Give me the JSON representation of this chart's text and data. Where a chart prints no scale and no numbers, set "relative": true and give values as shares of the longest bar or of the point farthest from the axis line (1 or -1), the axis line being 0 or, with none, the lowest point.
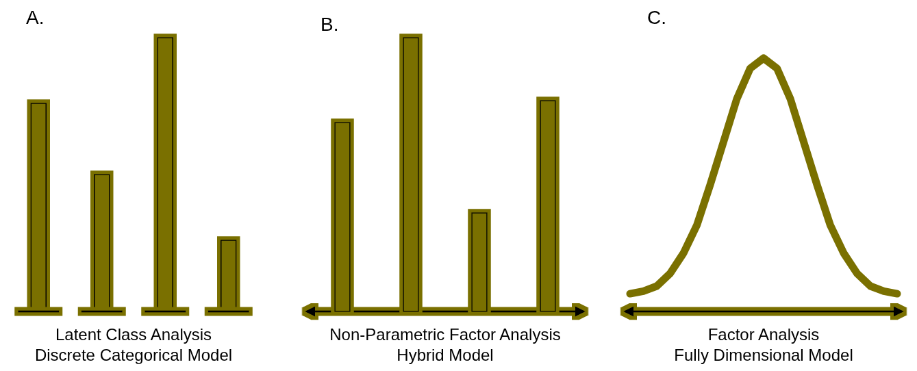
{
  "chart_data": [
    {
      "type": "bar",
      "title": "A.",
      "xlabel": "Latent Class Analysis\nDiscrete Categorical Model",
      "relative": true,
      "categories": [
        null,
        null,
        null,
        null
      ],
      "values": [
        0.76,
        0.5,
        1,
        0.26
      ],
      "color": "#7a7000"
    },
    {
      "type": "bar",
      "title": "B.",
      "xlabel": "Non-Parametric Factor Analysis\nHybrid Model",
      "relative": true,
      "categories": [
        null,
        null,
        null,
        null
      ],
      "values": [
        0.69,
        1,
        0.36,
        0.77
      ],
      "color": "#7a7000"
    },
    {
      "type": "line",
      "title": "C.",
      "xlabel": "Factor Analysis\nFully Dimensional Model",
      "relative": true,
      "categories": [
        null,
        null,
        null,
        null,
        null,
        null,
        null,
        null,
        null,
        null,
        null,
        null,
        null,
        null,
        null,
        null,
        null,
        null,
        null,
        null,
        null
      ],
      "values": [
        0.07,
        0.08,
        0.1,
        0.15,
        0.23,
        0.34,
        0.5,
        0.67,
        0.84,
        0.96,
        1,
        0.96,
        0.84,
        0.67,
        0.5,
        0.34,
        0.23,
        0.15,
        0.1,
        0.08,
        0.07
      ],
      "color": "#7a7000"
    }
  ]
}
